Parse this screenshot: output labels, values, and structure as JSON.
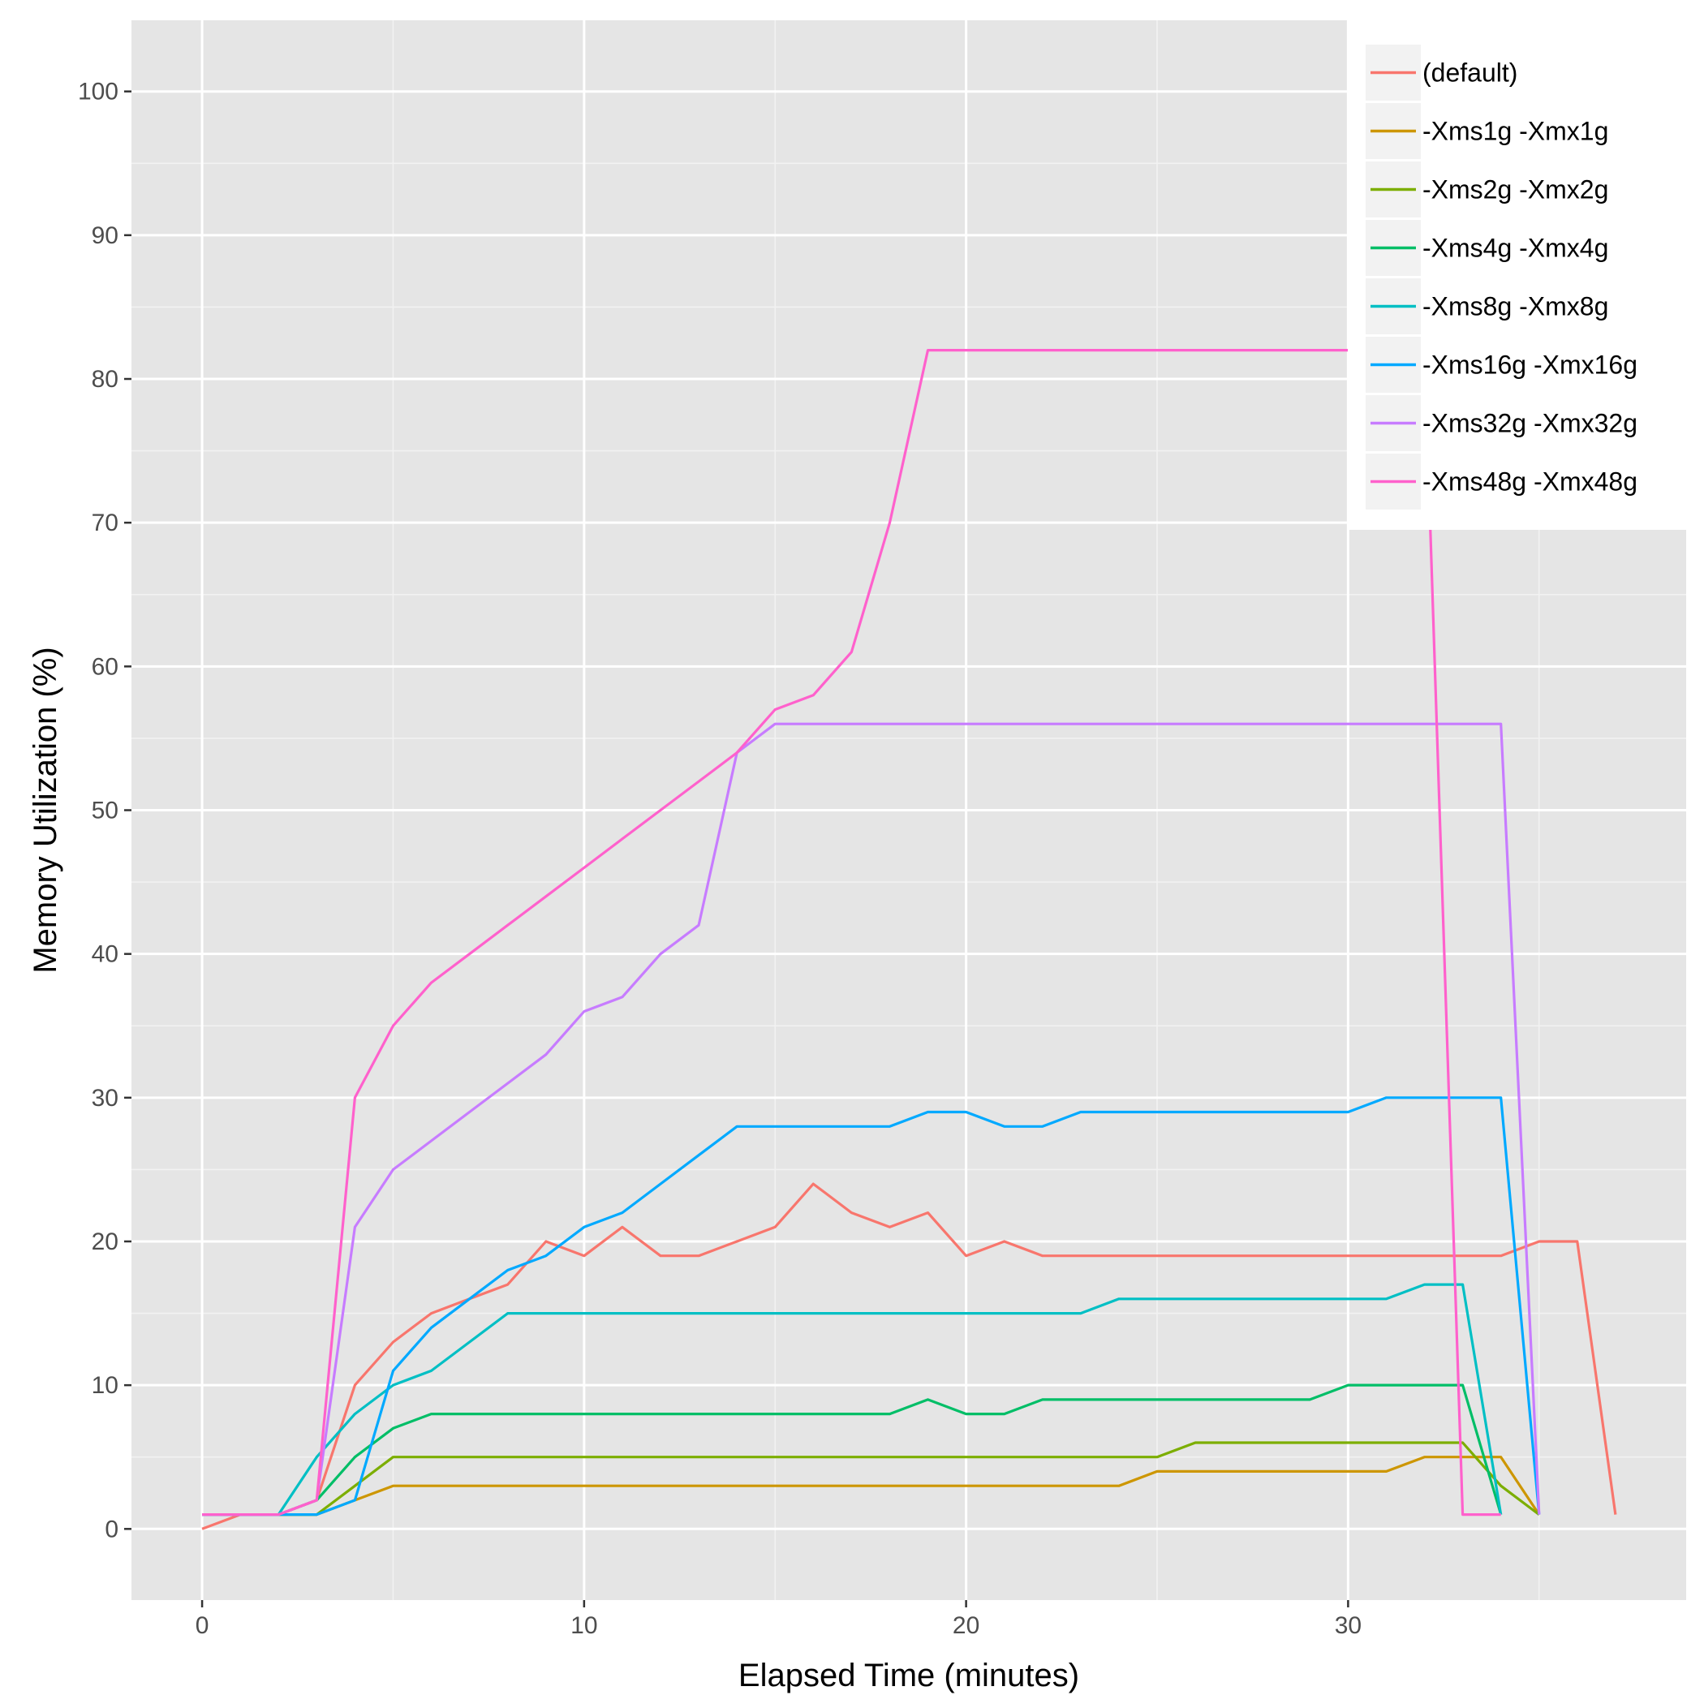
{
  "chart_data": {
    "type": "line",
    "title": "",
    "xlabel": "Elapsed Time (minutes)",
    "ylabel": "Memory Utilization (%)",
    "xlim": [
      -1.85,
      38.85
    ],
    "ylim": [
      -4.95,
      104.95
    ],
    "x_ticks": [
      0,
      10,
      20,
      30
    ],
    "y_ticks": [
      0,
      10,
      20,
      30,
      40,
      50,
      60,
      70,
      80,
      90,
      100
    ],
    "x_tick_labels": [
      "0",
      "10",
      "20",
      "30"
    ],
    "y_tick_labels": [
      "0",
      "10",
      "20",
      "30",
      "40",
      "50",
      "60",
      "70",
      "80",
      "90",
      "100"
    ],
    "grid": true,
    "legend_position": "top-right",
    "colors": {
      "panel_background": "#e5e5e5",
      "grid_major": "#ffffff",
      "grid_minor": "#f2f2f2"
    },
    "series": [
      {
        "name": "(default)",
        "color": "#F8766D",
        "x": [
          0,
          1,
          2,
          3,
          4,
          5,
          6,
          7,
          8,
          9,
          10,
          11,
          12,
          13,
          14,
          15,
          16,
          17,
          18,
          19,
          20,
          21,
          22,
          23,
          24,
          25,
          26,
          27,
          28,
          29,
          30,
          31,
          32,
          33,
          34,
          35,
          36,
          37
        ],
        "values": [
          0,
          1,
          1,
          2,
          10,
          13,
          15,
          16,
          17,
          20,
          19,
          21,
          19,
          19,
          20,
          21,
          24,
          22,
          21,
          22,
          19,
          20,
          19,
          19,
          19,
          19,
          19,
          19,
          19,
          19,
          19,
          19,
          19,
          19,
          19,
          20,
          20,
          1
        ]
      },
      {
        "name": "-Xms1g -Xmx1g",
        "color": "#CD9600",
        "x": [
          0,
          1,
          2,
          3,
          4,
          5,
          6,
          7,
          8,
          9,
          10,
          11,
          12,
          13,
          14,
          15,
          16,
          17,
          18,
          19,
          20,
          21,
          22,
          23,
          24,
          25,
          26,
          27,
          28,
          29,
          30,
          31,
          32,
          33,
          34,
          35
        ],
        "values": [
          1,
          1,
          1,
          1,
          2,
          3,
          3,
          3,
          3,
          3,
          3,
          3,
          3,
          3,
          3,
          3,
          3,
          3,
          3,
          3,
          3,
          3,
          3,
          3,
          3,
          4,
          4,
          4,
          4,
          4,
          4,
          4,
          5,
          5,
          5,
          1
        ]
      },
      {
        "name": "-Xms2g -Xmx2g",
        "color": "#7CAE00",
        "x": [
          0,
          1,
          2,
          3,
          4,
          5,
          6,
          7,
          8,
          9,
          10,
          11,
          12,
          13,
          14,
          15,
          16,
          17,
          18,
          19,
          20,
          21,
          22,
          23,
          24,
          25,
          26,
          27,
          28,
          29,
          30,
          31,
          32,
          33,
          34,
          35
        ],
        "values": [
          1,
          1,
          1,
          1,
          3,
          5,
          5,
          5,
          5,
          5,
          5,
          5,
          5,
          5,
          5,
          5,
          5,
          5,
          5,
          5,
          5,
          5,
          5,
          5,
          5,
          5,
          6,
          6,
          6,
          6,
          6,
          6,
          6,
          6,
          3,
          1
        ]
      },
      {
        "name": "-Xms4g -Xmx4g",
        "color": "#00BE67",
        "x": [
          0,
          1,
          2,
          3,
          4,
          5,
          6,
          7,
          8,
          9,
          10,
          11,
          12,
          13,
          14,
          15,
          16,
          17,
          18,
          19,
          20,
          21,
          22,
          23,
          24,
          25,
          26,
          27,
          28,
          29,
          30,
          31,
          32,
          33,
          34
        ],
        "values": [
          1,
          1,
          1,
          2,
          5,
          7,
          8,
          8,
          8,
          8,
          8,
          8,
          8,
          8,
          8,
          8,
          8,
          8,
          8,
          9,
          8,
          8,
          9,
          9,
          9,
          9,
          9,
          9,
          9,
          9,
          10,
          10,
          10,
          10,
          1
        ]
      },
      {
        "name": "-Xms8g -Xmx8g",
        "color": "#00BFC4",
        "x": [
          0,
          1,
          2,
          3,
          4,
          5,
          6,
          7,
          8,
          9,
          10,
          11,
          12,
          13,
          14,
          15,
          16,
          17,
          18,
          19,
          20,
          21,
          22,
          23,
          24,
          25,
          26,
          27,
          28,
          29,
          30,
          31,
          32,
          33,
          34
        ],
        "values": [
          1,
          1,
          1,
          5,
          8,
          10,
          11,
          13,
          15,
          15,
          15,
          15,
          15,
          15,
          15,
          15,
          15,
          15,
          15,
          15,
          15,
          15,
          15,
          15,
          16,
          16,
          16,
          16,
          16,
          16,
          16,
          16,
          17,
          17,
          1
        ]
      },
      {
        "name": "-Xms16g -Xmx16g",
        "color": "#00A9FF",
        "x": [
          0,
          1,
          2,
          3,
          4,
          5,
          6,
          7,
          8,
          9,
          10,
          11,
          12,
          13,
          14,
          15,
          16,
          17,
          18,
          19,
          20,
          21,
          22,
          23,
          24,
          25,
          26,
          27,
          28,
          29,
          30,
          31,
          32,
          33,
          34,
          35
        ],
        "values": [
          1,
          1,
          1,
          1,
          2,
          11,
          14,
          16,
          18,
          19,
          21,
          22,
          24,
          26,
          28,
          28,
          28,
          28,
          28,
          29,
          29,
          28,
          28,
          29,
          29,
          29,
          29,
          29,
          29,
          29,
          29,
          30,
          30,
          30,
          30,
          1
        ]
      },
      {
        "name": "-Xms32g -Xmx32g",
        "color": "#C77CFF",
        "x": [
          0,
          1,
          2,
          3,
          4,
          5,
          6,
          7,
          8,
          9,
          10,
          11,
          12,
          13,
          14,
          15,
          16,
          17,
          18,
          19,
          20,
          21,
          22,
          23,
          24,
          25,
          26,
          27,
          28,
          29,
          30,
          31,
          32,
          33,
          34,
          35
        ],
        "values": [
          1,
          1,
          1,
          2,
          21,
          25,
          27,
          29,
          31,
          33,
          36,
          37,
          40,
          42,
          54,
          56,
          56,
          56,
          56,
          56,
          56,
          56,
          56,
          56,
          56,
          56,
          56,
          56,
          56,
          56,
          56,
          56,
          56,
          56,
          56,
          1
        ]
      },
      {
        "name": "-Xms48g -Xmx48g",
        "color": "#FF61CC",
        "x": [
          0,
          1,
          2,
          3,
          4,
          5,
          6,
          7,
          8,
          9,
          10,
          11,
          12,
          13,
          14,
          15,
          16,
          17,
          18,
          19,
          20,
          21,
          22,
          23,
          24,
          25,
          26,
          27,
          28,
          29,
          30,
          31,
          32,
          33,
          34
        ],
        "values": [
          1,
          1,
          1,
          2,
          30,
          35,
          38,
          40,
          42,
          44,
          46,
          48,
          50,
          52,
          54,
          57,
          58,
          61,
          70,
          82,
          82,
          82,
          82,
          82,
          82,
          82,
          82,
          82,
          82,
          82,
          82,
          82,
          82,
          1,
          1
        ]
      }
    ]
  }
}
